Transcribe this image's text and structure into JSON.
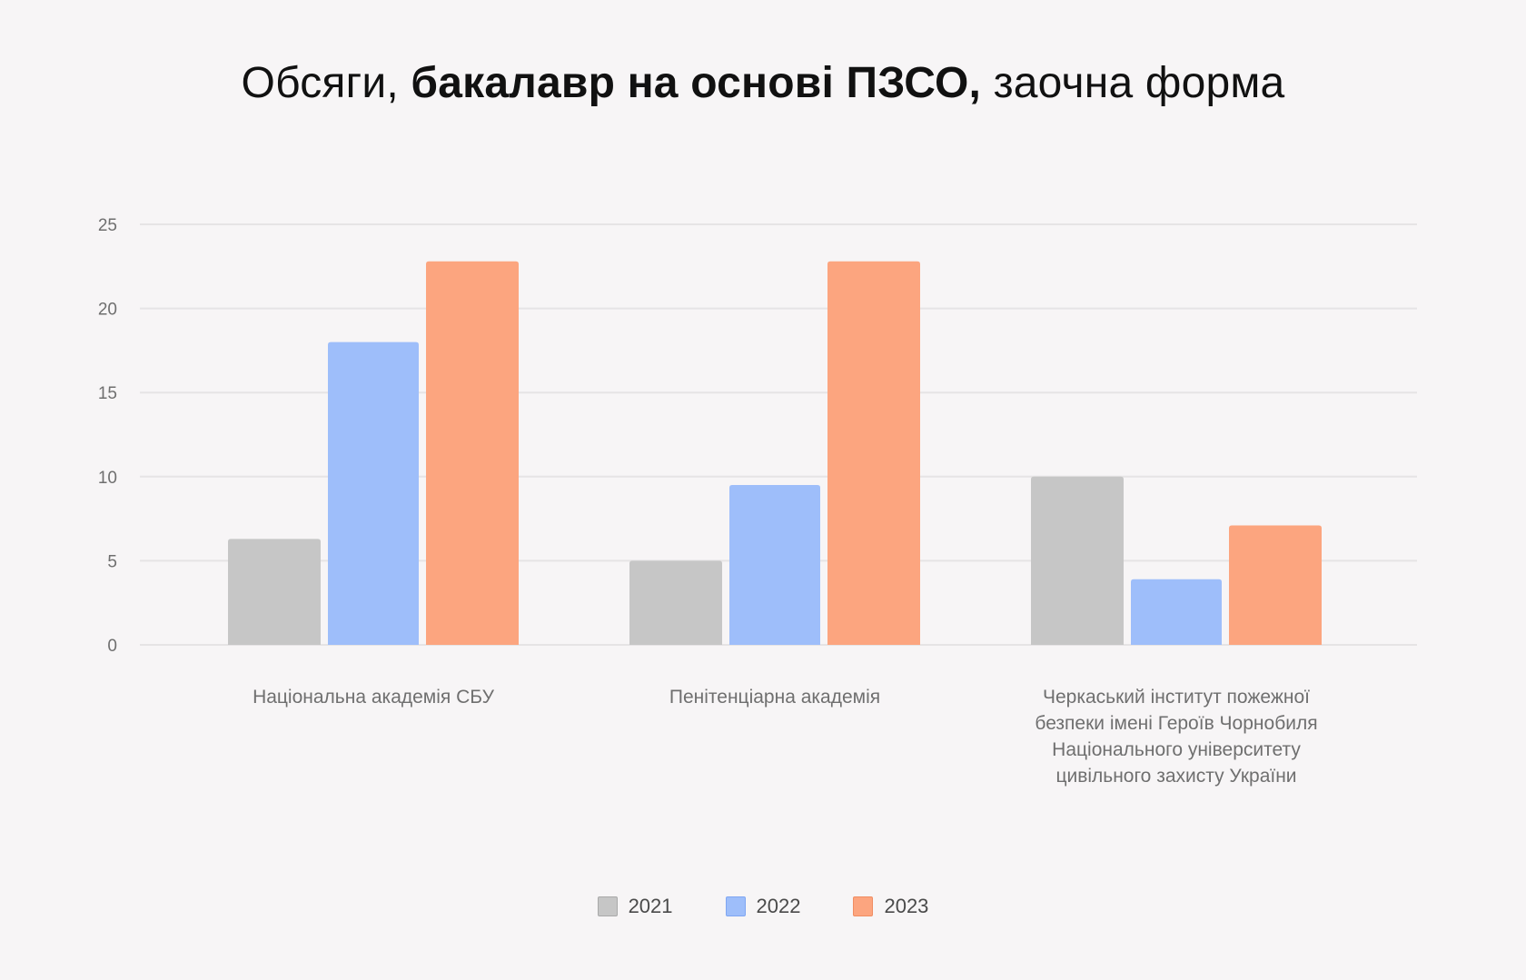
{
  "title": {
    "prefix": "Обсяги, ",
    "bold": "бакалавр на основі ПЗСО,",
    "suffix": " заочна форма"
  },
  "colors": {
    "background": "#f7f5f6",
    "grid": "#e6e4e5",
    "series": [
      "#c6c6c6",
      "#9ebefa",
      "#fca57f"
    ],
    "swatch_border": [
      "#a9a9a9",
      "#7fa6f2",
      "#f08d62"
    ]
  },
  "legend": {
    "placement": "bottom-center"
  },
  "chart_data": {
    "type": "bar",
    "title": "Обсяги, бакалавр на основі ПЗСО, заочна форма",
    "xlabel": "",
    "ylabel": "",
    "ylim": [
      0,
      25
    ],
    "yticks": [
      0,
      5,
      10,
      15,
      20,
      25
    ],
    "grid": true,
    "categories": [
      [
        "Національна академія СБУ"
      ],
      [
        "Пенітенціарна академія"
      ],
      [
        "Черкаський інститут пожежної",
        "безпеки імені Героїв Чорнобиля",
        "Національного університету",
        "цивільного захисту України"
      ]
    ],
    "series": [
      {
        "name": "2021",
        "values": [
          6.3,
          5,
          10
        ]
      },
      {
        "name": "2022",
        "values": [
          18,
          9.5,
          3.9
        ]
      },
      {
        "name": "2023",
        "values": [
          22.8,
          22.8,
          7.1
        ]
      }
    ]
  }
}
